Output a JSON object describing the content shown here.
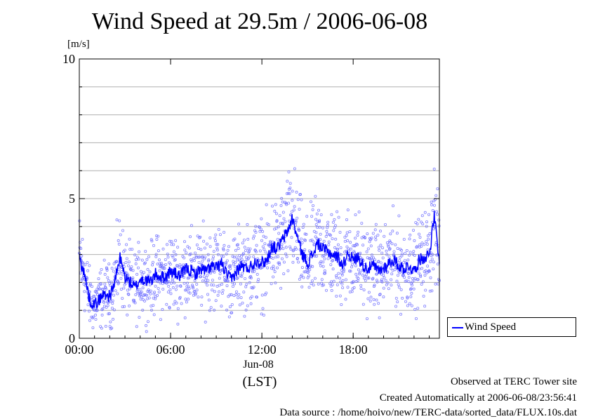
{
  "title": "Wind Speed at 29.5m / 2006-06-08",
  "y_unit": "[m/s]",
  "x_date_label": "Jun-08",
  "x_tz_label": "(LST)",
  "legend_label": "Wind Speed",
  "footer": {
    "line1": "Observed at TERC Tower site",
    "line2": "Created Automatically at 2006-06-08/23:56:41",
    "line3": "Data source : /home/hoivo/new/TERC-data/sorted_data/FLUX.10s.dat"
  },
  "colors": {
    "line": "#0000ff",
    "scatter": "#6666ff",
    "grid": "#b0b0b0"
  },
  "chart_data": {
    "type": "line",
    "title": "Wind Speed at 29.5m / 2006-06-08",
    "ylabel": "[m/s]",
    "xlabel": "(LST)",
    "ylim": [
      0,
      10
    ],
    "xlim": [
      "00:00",
      "23:40"
    ],
    "y_ticks": [
      0,
      5,
      10
    ],
    "x_ticks": [
      "00:00",
      "06:00",
      "12:00",
      "18:00"
    ],
    "grid": "horizontal",
    "legend": "right",
    "series": [
      {
        "name": "Wind Speed",
        "style": "line with raw 10-s samples as scatter",
        "x": [
          "00:00",
          "00:20",
          "00:40",
          "01:00",
          "01:20",
          "01:40",
          "02:00",
          "02:20",
          "02:40",
          "03:00",
          "03:20",
          "03:40",
          "04:00",
          "04:20",
          "04:40",
          "05:00",
          "05:20",
          "05:40",
          "06:00",
          "06:20",
          "06:40",
          "07:00",
          "07:20",
          "07:40",
          "08:00",
          "08:20",
          "08:40",
          "09:00",
          "09:20",
          "09:40",
          "10:00",
          "10:20",
          "10:40",
          "11:00",
          "11:20",
          "11:40",
          "12:00",
          "12:20",
          "12:40",
          "13:00",
          "13:20",
          "13:40",
          "14:00",
          "14:20",
          "14:40",
          "15:00",
          "15:20",
          "15:40",
          "16:00",
          "16:20",
          "16:40",
          "17:00",
          "17:20",
          "17:40",
          "18:00",
          "18:20",
          "18:40",
          "19:00",
          "19:20",
          "19:40",
          "20:00",
          "20:20",
          "20:40",
          "21:00",
          "21:20",
          "21:40",
          "22:00",
          "22:20",
          "22:40",
          "23:00",
          "23:20",
          "23:40"
        ],
        "values": [
          2.9,
          2.3,
          1.4,
          1.2,
          1.4,
          1.6,
          1.5,
          2.0,
          2.9,
          2.2,
          2.0,
          1.8,
          2.1,
          2.1,
          2.0,
          2.3,
          2.2,
          2.2,
          2.4,
          2.3,
          2.2,
          2.5,
          2.4,
          2.3,
          2.5,
          2.4,
          2.6,
          2.5,
          2.7,
          2.3,
          2.1,
          2.4,
          2.6,
          2.5,
          2.6,
          2.8,
          2.7,
          2.8,
          3.3,
          3.2,
          3.5,
          3.8,
          4.3,
          3.6,
          3.0,
          2.7,
          3.0,
          3.4,
          3.2,
          3.1,
          3.0,
          2.9,
          2.6,
          3.1,
          2.8,
          2.9,
          2.6,
          2.5,
          2.6,
          2.4,
          2.5,
          2.7,
          2.8,
          2.6,
          2.5,
          2.6,
          2.4,
          2.8,
          2.9,
          3.0,
          4.4,
          2.6
        ]
      }
    ]
  }
}
